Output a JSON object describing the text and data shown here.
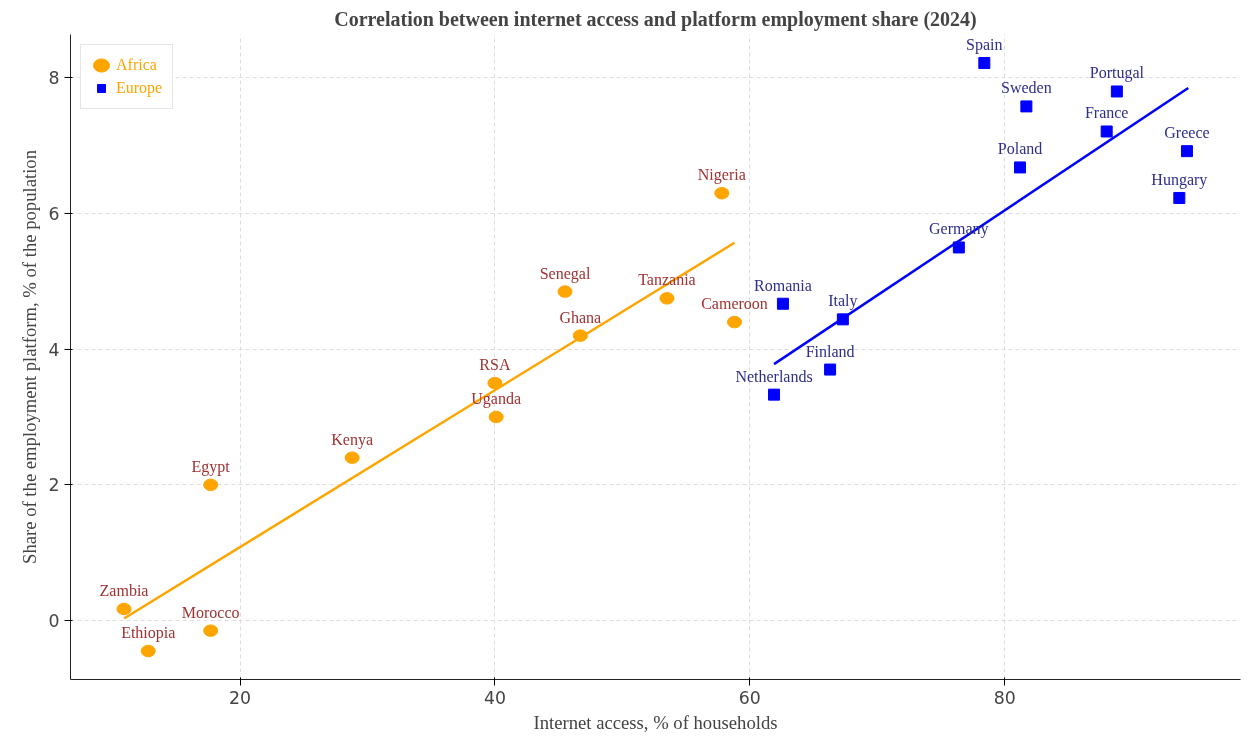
{
  "chart_data": {
    "type": "scatter",
    "title": "Correlation between internet access and platform employment share (2024)",
    "xlabel": "Internet access, % of households",
    "ylabel": "Share of the employment platform, % of the population",
    "xlim": [
      6.7,
      98.5
    ],
    "ylim": [
      -0.87,
      8.64
    ],
    "xticks": [
      20,
      40,
      60,
      80
    ],
    "yticks": [
      0,
      2,
      4,
      6,
      8
    ],
    "grid": true,
    "legend": "top left",
    "series": [
      {
        "name": "Africa",
        "color": "#ffa500",
        "marker": "circle",
        "x": [
          10.9,
          12.8,
          17.7,
          17.7,
          28.8,
          40.0,
          40.1,
          46.7,
          45.5,
          53.5,
          58.8,
          57.8
        ],
        "values": [
          0.17,
          -0.45,
          -0.15,
          2.0,
          2.4,
          3.5,
          3.0,
          4.2,
          4.85,
          4.75,
          4.4,
          6.3
        ]
      },
      {
        "name": "Europe",
        "color": "#0000ff",
        "marker": "square",
        "x": [
          62.6,
          61.9,
          66.3,
          67.3,
          76.4,
          81.2,
          78.4,
          81.7,
          88.0,
          88.8,
          94.3,
          93.7
        ],
        "values": [
          4.67,
          3.33,
          3.7,
          4.44,
          5.5,
          6.68,
          8.22,
          7.58,
          7.21,
          7.8,
          6.92,
          6.23
        ]
      },
      {
        "type": "line",
        "color": "#ffa500",
        "x": [
          10.9,
          58.8
        ],
        "values": [
          0.03,
          5.57
        ]
      },
      {
        "type": "line",
        "color": "#0000ff",
        "x": [
          61.9,
          94.4
        ],
        "values": [
          3.78,
          7.85
        ]
      }
    ],
    "annotations": [
      {
        "text": "Zambia",
        "x": 10.9,
        "y": 0.17
      },
      {
        "text": "Ethiopia",
        "x": 12.8,
        "y": -0.45
      },
      {
        "text": "Morocco",
        "x": 17.7,
        "y": -0.15
      },
      {
        "text": "Egypt",
        "x": 17.7,
        "y": 2.0
      },
      {
        "text": "Kenya",
        "x": 28.8,
        "y": 2.4
      },
      {
        "text": "RSA",
        "x": 40.0,
        "y": 3.5
      },
      {
        "text": "Uganda",
        "x": 40.1,
        "y": 3.0
      },
      {
        "text": "Ghana",
        "x": 46.7,
        "y": 4.2
      },
      {
        "text": "Senegal",
        "x": 45.5,
        "y": 4.85
      },
      {
        "text": "Tanzania",
        "x": 53.5,
        "y": 4.75
      },
      {
        "text": "Cameroon",
        "x": 58.8,
        "y": 4.4
      },
      {
        "text": "Nigeria",
        "x": 57.8,
        "y": 6.3
      },
      {
        "text": "Romania",
        "x": 62.6,
        "y": 4.67
      },
      {
        "text": "Netherlands",
        "x": 61.9,
        "y": 3.33
      },
      {
        "text": "Finland",
        "x": 66.3,
        "y": 3.7
      },
      {
        "text": "Italy",
        "x": 67.3,
        "y": 4.44
      },
      {
        "text": "Germany",
        "x": 76.4,
        "y": 5.5
      },
      {
        "text": "Poland",
        "x": 81.2,
        "y": 6.68
      },
      {
        "text": "Spain",
        "x": 78.4,
        "y": 8.22
      },
      {
        "text": "Sweden",
        "x": 81.7,
        "y": 7.58
      },
      {
        "text": "France",
        "x": 88.0,
        "y": 7.21
      },
      {
        "text": "Portugal",
        "x": 88.8,
        "y": 7.8
      },
      {
        "text": "Greece",
        "x": 94.3,
        "y": 6.92
      },
      {
        "text": "Hungary",
        "x": 93.7,
        "y": 6.23
      }
    ]
  }
}
